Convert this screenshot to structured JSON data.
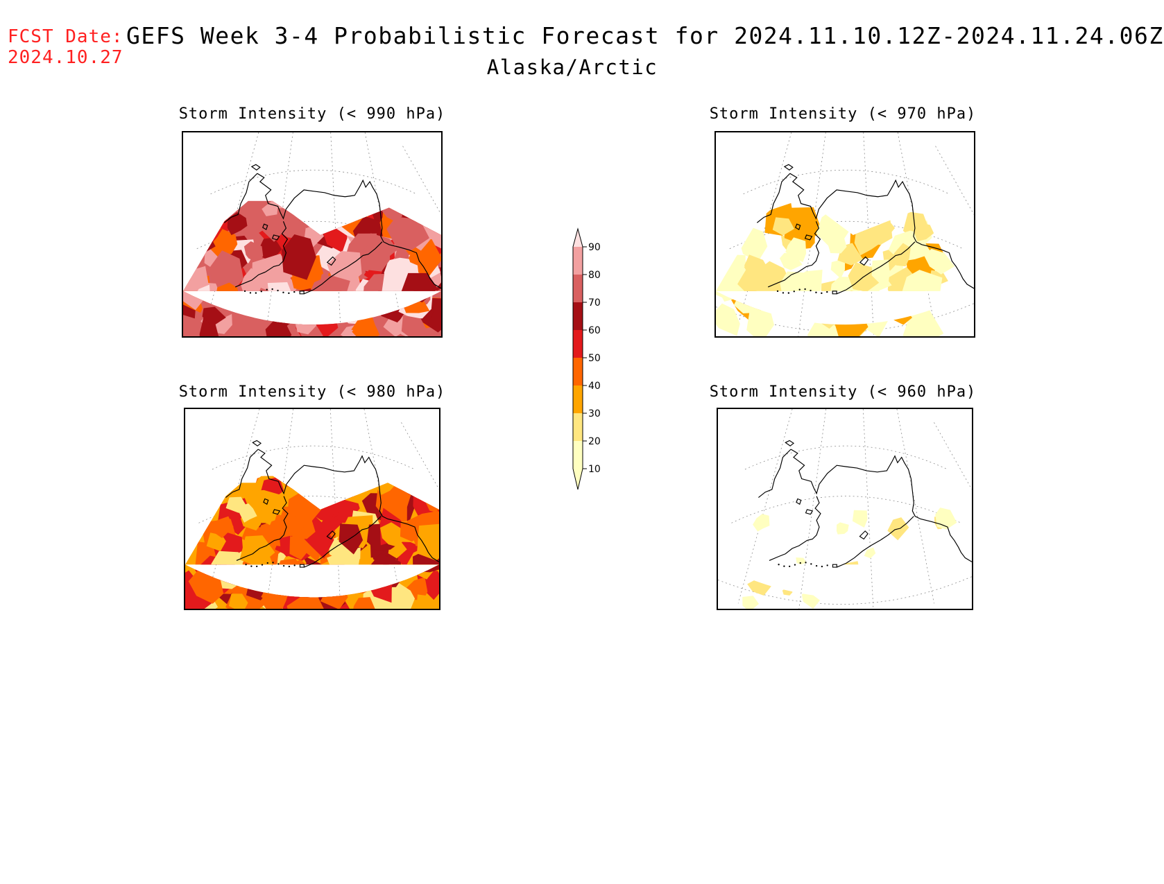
{
  "header": {
    "fcst_label": "FCST Date:",
    "fcst_date": "2024.10.27",
    "title": "GEFS Week 3-4 Probabilistic Forecast for 2024.11.10.12Z-2024.11.24.06Z",
    "region": "Alaska/Arctic"
  },
  "panels": [
    {
      "id": "p990",
      "title": "Storm Intensity (< 990 hPa)",
      "intensity": "very-high"
    },
    {
      "id": "p980",
      "title": "Storm Intensity (< 980 hPa)",
      "intensity": "high"
    },
    {
      "id": "p970",
      "title": "Storm Intensity (< 970 hPa)",
      "intensity": "low"
    },
    {
      "id": "p960",
      "title": "Storm Intensity (< 960 hPa)",
      "intensity": "very-low"
    }
  ],
  "colorbar": {
    "levels": [
      "10",
      "20",
      "30",
      "40",
      "50",
      "60",
      "70",
      "80",
      "90"
    ],
    "colors": [
      "#ffffc0",
      "#ffe680",
      "#ffa500",
      "#ff6600",
      "#e31a1c",
      "#a50f15",
      "#d96060",
      "#f2a0a0",
      "#fde0e0"
    ]
  }
}
